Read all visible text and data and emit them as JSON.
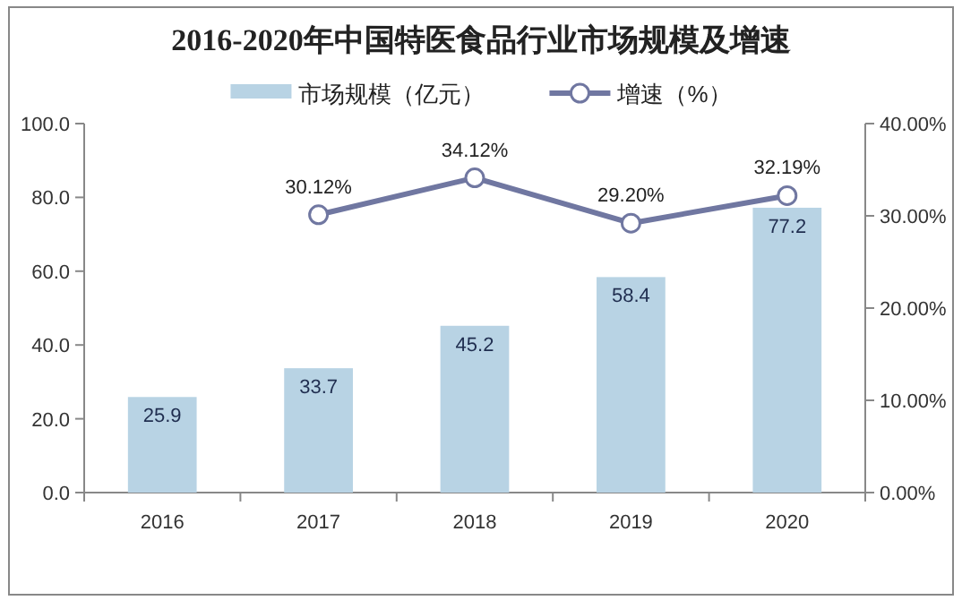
{
  "chart_data": {
    "type": "bar",
    "title": "2016-2020年中国特医食品行业市场规模及增速",
    "categories": [
      "2016",
      "2017",
      "2018",
      "2019",
      "2020"
    ],
    "series": [
      {
        "name": "市场规模（亿元）",
        "type": "bar",
        "color": "#b8d3e4",
        "values": [
          25.9,
          33.7,
          45.2,
          58.4,
          77.2
        ]
      },
      {
        "name": "增速（%）",
        "type": "line",
        "axis": "y2",
        "color": "#7077a1",
        "marker": "circle",
        "value_labels": [
          null,
          "30.12%",
          "34.12%",
          "29.20%",
          "32.19%"
        ],
        "values": [
          null,
          30.12,
          34.12,
          29.2,
          32.19
        ]
      }
    ],
    "ylim": [
      0,
      100
    ],
    "yticks": [
      {
        "value": 0,
        "label": "0.0"
      },
      {
        "value": 20,
        "label": "20.0"
      },
      {
        "value": 40,
        "label": "40.0"
      },
      {
        "value": 60,
        "label": "60.0"
      },
      {
        "value": 80,
        "label": "80.0"
      },
      {
        "value": 100,
        "label": "100.0"
      }
    ],
    "y2lim": [
      0,
      40
    ],
    "y2ticks": [
      {
        "value": 0,
        "label": "0.00%"
      },
      {
        "value": 10,
        "label": "10.00%"
      },
      {
        "value": 20,
        "label": "20.00%"
      },
      {
        "value": 30,
        "label": "30.00%"
      },
      {
        "value": 40,
        "label": "40.00%"
      }
    ],
    "data_labels": true,
    "legend": "top",
    "grid": false
  }
}
